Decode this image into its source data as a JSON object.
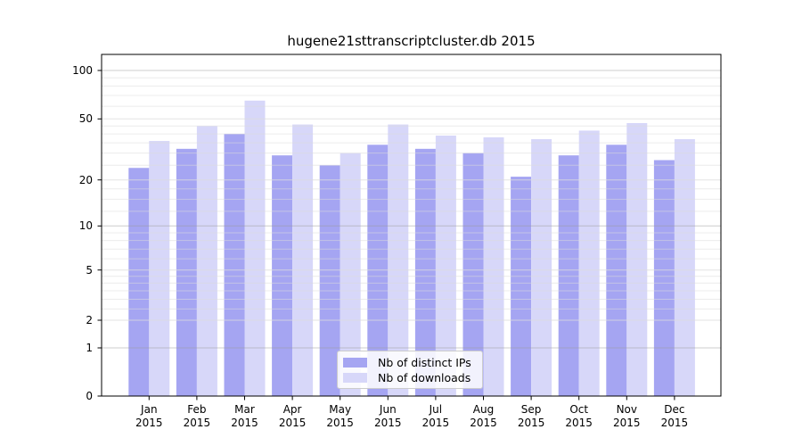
{
  "figure": {
    "title": "hugene21sttranscriptcluster.db 2015",
    "background_color": "#ffffff"
  },
  "chart_data": {
    "type": "bar",
    "title": "hugene21sttranscriptcluster.db 2015",
    "categories": [
      "Jan 2015",
      "Feb 2015",
      "Mar 2015",
      "Apr 2015",
      "May 2015",
      "Jun 2015",
      "Jul 2015",
      "Aug 2015",
      "Sep 2015",
      "Oct 2015",
      "Nov 2015",
      "Dec 2015"
    ],
    "month_labels": [
      "Jan",
      "Feb",
      "Mar",
      "Apr",
      "May",
      "Jun",
      "Jul",
      "Aug",
      "Sep",
      "Oct",
      "Nov",
      "Dec"
    ],
    "year_label": "2015",
    "series": [
      {
        "name": "Nb of distinct IPs",
        "color": "#a5a5f2",
        "values": [
          24,
          32,
          40,
          29,
          25,
          34,
          32,
          30,
          21,
          29,
          34,
          27
        ]
      },
      {
        "name": "Nb of downloads",
        "color": "#d7d7f9",
        "values": [
          36,
          45,
          65,
          46,
          30,
          46,
          39,
          38,
          37,
          42,
          47,
          37
        ]
      }
    ],
    "y_axis": {
      "scale": "log-like",
      "ticks": [
        {
          "label": "100",
          "value": 100
        },
        {
          "label": "50",
          "value": 50
        },
        {
          "label": "20",
          "value": 20
        },
        {
          "label": "10",
          "value": 10
        },
        {
          "label": "5",
          "value": 5
        },
        {
          "label": "2",
          "value": 2
        },
        {
          "label": "1",
          "value": 1
        },
        {
          "label": "0",
          "value": 0
        }
      ],
      "ylim": [
        0,
        110
      ]
    },
    "grid": true,
    "legend_position": "inside-bottom-center",
    "axis_color": "#000000",
    "grid_decade_color": "#9a9a9a",
    "grid_minor_color": "#dcdcdc"
  }
}
